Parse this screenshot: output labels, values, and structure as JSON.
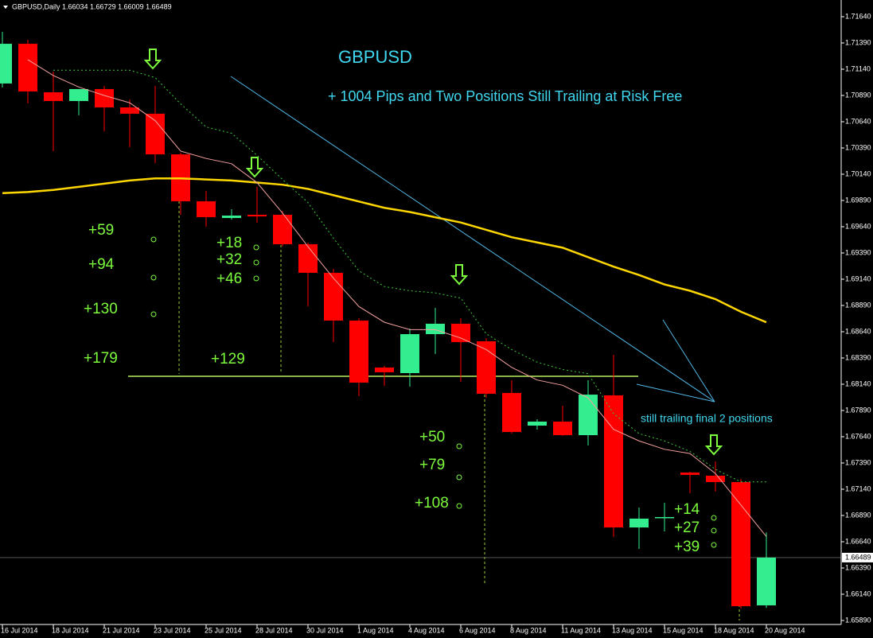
{
  "chart_data": {
    "type": "candlestick",
    "title": "GBPUSD,Daily  1.66034 1.66729 1.66009 1.66489",
    "categories": [
      "16 Jul 2014",
      null,
      "18 Jul 2014",
      null,
      "21 Jul 2014",
      null,
      "23 Jul 2014",
      null,
      "25 Jul 2014",
      null,
      "28 Jul 2014",
      null,
      "30 Jul 2014",
      null,
      "1 Aug 2014",
      null,
      "4 Aug 2014",
      null,
      "6 Aug 2014",
      null,
      "8 Aug 2014",
      null,
      "11 Aug 2014",
      null,
      "13 Aug 2014",
      null,
      "15 Aug 2014",
      null,
      "18 Aug 2014",
      null,
      "20 Aug 2014"
    ],
    "open": [
      1.71004,
      1.71382,
      1.7092,
      1.70837,
      1.70951,
      1.70776,
      1.70716,
      1.70329,
      1.69882,
      1.69723,
      1.69754,
      1.69754,
      1.69473,
      1.69201,
      1.68746,
      1.68299,
      1.68246,
      1.68617,
      1.68716,
      1.68549,
      1.68057,
      1.67746,
      1.67784,
      1.67655,
      1.68034,
      1.66776,
      1.66867,
      1.67299,
      1.67269,
      1.67208,
      1.66034
    ],
    "high": [
      1.71496,
      1.7142,
      1.71117,
      1.70951,
      1.70981,
      1.70852,
      1.70981,
      1.70344,
      1.69981,
      1.69807,
      1.70019,
      1.69791,
      1.69488,
      1.69238,
      1.68769,
      1.68314,
      1.6867,
      1.68867,
      1.68769,
      1.68579,
      1.68178,
      1.67807,
      1.67935,
      1.68178,
      1.6842,
      1.66966,
      1.67011,
      1.67307,
      1.67405,
      1.67238,
      1.66729
    ],
    "low": [
      1.70966,
      1.70814,
      1.7036,
      1.70701,
      1.70549,
      1.70398,
      1.70246,
      1.69754,
      1.6964,
      1.69708,
      1.69678,
      1.69451,
      1.68882,
      1.68541,
      1.68026,
      1.68125,
      1.68117,
      1.68428,
      1.68163,
      1.68011,
      1.6767,
      1.67708,
      1.67648,
      1.67557,
      1.66685,
      1.66572,
      1.66738,
      1.67102,
      1.67117,
      1.66004,
      1.66009
    ],
    "close": [
      1.71382,
      1.70928,
      1.70837,
      1.70951,
      1.70776,
      1.70716,
      1.70329,
      1.69882,
      1.69731,
      1.69746,
      1.69738,
      1.69473,
      1.69201,
      1.68746,
      1.68155,
      1.68254,
      1.68617,
      1.68716,
      1.68541,
      1.68049,
      1.67685,
      1.67784,
      1.67655,
      1.68041,
      1.66776,
      1.6686,
      1.66875,
      1.67276,
      1.67208,
      1.66026,
      1.66489
    ],
    "up_color": "#33ee8e",
    "down_color": "#ff0000",
    "series": [
      {
        "color": "#ffd700",
        "values": [
          1.6996,
          1.6997,
          1.6999,
          1.7002,
          1.7005,
          1.7008,
          1.701,
          1.701,
          1.7009,
          1.7008,
          1.7006,
          1.7004,
          1.7,
          1.6994,
          1.6988,
          1.6982,
          1.6978,
          1.6973,
          1.6968,
          1.6961,
          1.6954,
          1.6949,
          1.6944,
          1.6935,
          1.6926,
          1.6918,
          1.6909,
          1.6903,
          1.6895,
          1.6883,
          1.6873
        ]
      },
      {
        "color": "#f4a0a0",
        "values": [
          null,
          1.7123,
          1.7108,
          1.7097,
          1.7089,
          1.7082,
          1.7065,
          1.7036,
          1.7029,
          1.7024,
          1.7006,
          1.6977,
          1.6945,
          1.6915,
          1.6888,
          1.6873,
          1.6866,
          1.6866,
          1.6858,
          1.6847,
          1.683,
          1.6818,
          1.6813,
          1.6801,
          1.6771,
          1.676,
          1.6752,
          1.6748,
          1.6729,
          1.6699,
          1.6669
        ]
      },
      {
        "color": "#3cc83c",
        "dashed": true,
        "values": [
          null,
          null,
          1.7113,
          1.7113,
          1.7113,
          1.7113,
          1.7106,
          1.7081,
          1.7059,
          1.7053,
          1.7032,
          1.7009,
          1.6987,
          1.6953,
          1.6922,
          1.6907,
          1.6903,
          1.6901,
          1.6896,
          1.6862,
          1.6847,
          1.6835,
          1.6828,
          1.6824,
          1.6786,
          1.6767,
          1.676,
          1.675,
          1.6733,
          1.6721,
          1.6721
        ]
      }
    ],
    "ylim": [
      1.65852,
      1.71799
    ],
    "yticks": [
      {
        "value": 1.7164,
        "label": "1.71640"
      },
      {
        "value": 1.7139,
        "label": "1.71390"
      },
      {
        "value": 1.7114,
        "label": "1.71140"
      },
      {
        "value": 1.7089,
        "label": "1.70890"
      },
      {
        "value": 1.7064,
        "label": "1.70640"
      },
      {
        "value": 1.7039,
        "label": "1.70390"
      },
      {
        "value": 1.7014,
        "label": "1.70140"
      },
      {
        "value": 1.6989,
        "label": "1.69890"
      },
      {
        "value": 1.6964,
        "label": "1.69640"
      },
      {
        "value": 1.6939,
        "label": "1.69390"
      },
      {
        "value": 1.6914,
        "label": "1.69140"
      },
      {
        "value": 1.6889,
        "label": "1.68890"
      },
      {
        "value": 1.6864,
        "label": "1.68640"
      },
      {
        "value": 1.6839,
        "label": "1.68390"
      },
      {
        "value": 1.6814,
        "label": "1.68140"
      },
      {
        "value": 1.6789,
        "label": "1.67890"
      },
      {
        "value": 1.6764,
        "label": "1.67640"
      },
      {
        "value": 1.6739,
        "label": "1.67390"
      },
      {
        "value": 1.6714,
        "label": "1.67140"
      },
      {
        "value": 1.6689,
        "label": "1.66890"
      },
      {
        "value": 1.6664,
        "label": "1.66640"
      },
      {
        "value": 1.6639,
        "label": "1.66390"
      },
      {
        "value": 1.6614,
        "label": "1.66140"
      },
      {
        "value": 1.6589,
        "label": "1.65890"
      }
    ],
    "current_price": 1.66489,
    "support_level": 1.68216,
    "annotations": [
      "GBPUSD",
      "+ 1004 Pips and Two Positions Still Trailing at Risk Free",
      "still trailing final 2 positions",
      "+59",
      "+94",
      "+130",
      "+179",
      "+18",
      "+32",
      "+46",
      "+129",
      "+50",
      "+79",
      "+108",
      "+14",
      "+27",
      "+39"
    ]
  }
}
